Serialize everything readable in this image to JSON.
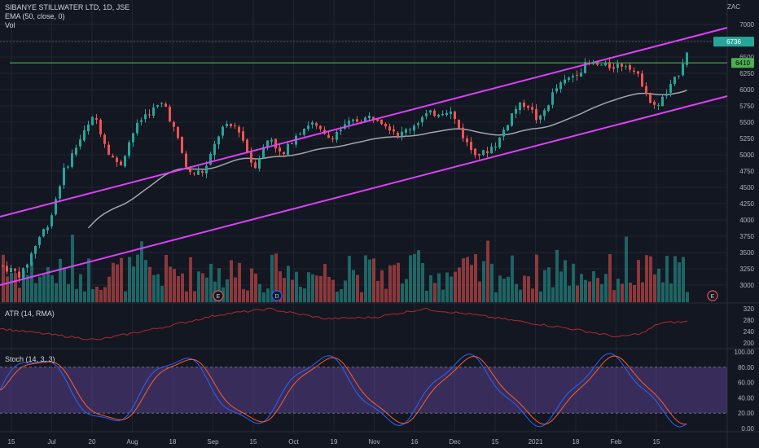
{
  "chart_data": {
    "type": "candlestick",
    "instrument": "SIBANYE STILLWATER LTD, 1D, JSE",
    "currency": "ZAC",
    "indicators": {
      "ema": "EMA (50, close, 0)",
      "volume": "Vol",
      "atr": "ATR (14, RMA)",
      "stoch": "Stoch (14, 3, 3)"
    },
    "price_axis": {
      "ticks": [
        3000,
        3250,
        3500,
        3750,
        4000,
        4250,
        4500,
        4750,
        5000,
        5250,
        5500,
        5750,
        6000,
        6250,
        6500,
        6750,
        7000
      ],
      "range": [
        2900,
        7100
      ]
    },
    "price_labels": {
      "last": "6736",
      "last_marker": "6750",
      "level": "6410",
      "level_marker": "6400"
    },
    "horizontal_level": 6410,
    "channel": {
      "upper": {
        "start": 4050,
        "end": 6950
      },
      "lower": {
        "start": 3000,
        "end": 5900
      }
    },
    "atr_axis": {
      "ticks": [
        200,
        240,
        280,
        320
      ],
      "range": [
        185,
        335
      ]
    },
    "stoch_axis": {
      "ticks": [
        0,
        20,
        40,
        60,
        80,
        100
      ],
      "band": [
        20,
        80
      ]
    },
    "x_labels": [
      "15",
      "Jul",
      "20",
      "Aug",
      "18",
      "Sep",
      "15",
      "Oct",
      "19",
      "Nov",
      "16",
      "Dec",
      "15",
      "2021",
      "18",
      "Feb",
      "15"
    ],
    "events": [
      "E",
      "D",
      "E"
    ],
    "colors": {
      "up": "#26a69a",
      "down": "#ef5350",
      "channel": "#e040fb",
      "level": "#4caf50",
      "ema": "#a3a6af",
      "atr": "#b22833",
      "stoch_k": "#2962ff",
      "stoch_d": "#ff5b2b",
      "band": "#7e57c2"
    }
  }
}
